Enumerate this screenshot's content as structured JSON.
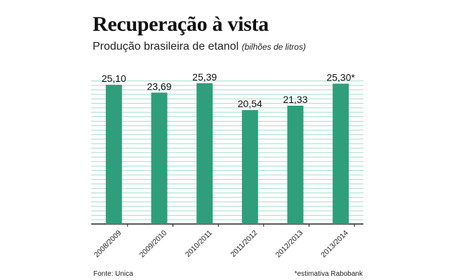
{
  "chart_data": {
    "type": "bar",
    "title": "Recuperação à vista",
    "subtitle": "Produção brasileira de etanol",
    "unit_note": "(bilhões de litros)",
    "categories": [
      "2008/2009",
      "2009/2010",
      "2010/2011",
      "2011/2012",
      "2012/2013",
      "2013/2014"
    ],
    "values": [
      25.1,
      23.69,
      25.39,
      20.54,
      21.33,
      25.3
    ],
    "data_labels": [
      "25,10",
      "23,69",
      "25,39",
      "20,54",
      "21,33",
      "25,30*"
    ],
    "xlabel": "",
    "ylabel": "",
    "ylim": [
      0,
      26.5
    ],
    "grid": true,
    "legend": "none",
    "bar_color": "#2e9e7b",
    "grid_color": "#a8dccb"
  },
  "footer": {
    "source": "Fonte: Unica",
    "note": "*estimativa Rabobank"
  }
}
